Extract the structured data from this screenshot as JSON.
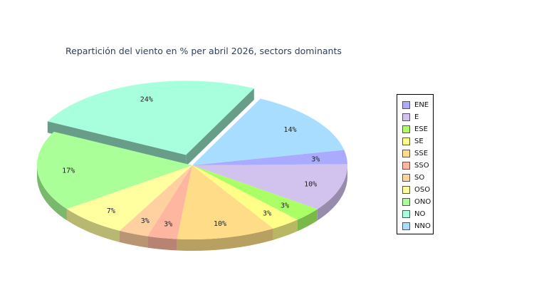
{
  "chart_data": {
    "type": "pie",
    "title": "Repartición del viento en % per abril 2026, sectors dominants",
    "legend_position": "right",
    "slices": [
      {
        "name": "ENE",
        "value": 3,
        "label": "3%",
        "color": "#aaaaff"
      },
      {
        "name": "E",
        "value": 10,
        "label": "10%",
        "color": "#d2c2ee"
      },
      {
        "name": "ESE",
        "value": 3,
        "label": "3%",
        "color": "#aaff66"
      },
      {
        "name": "SE",
        "value": 3,
        "label": "3%",
        "color": "#ffff88"
      },
      {
        "name": "SSE",
        "value": 10,
        "label": "10%",
        "color": "#ffdd88"
      },
      {
        "name": "SSO",
        "value": 3,
        "label": "3%",
        "color": "#ffb6a0"
      },
      {
        "name": "SO",
        "value": 3,
        "label": "3%",
        "color": "#ffd0a0"
      },
      {
        "name": "OSO",
        "value": 7,
        "label": "7%",
        "color": "#ffffa0"
      },
      {
        "name": "ONO",
        "value": 17,
        "label": "17%",
        "color": "#aaff99"
      },
      {
        "name": "NO",
        "value": 24,
        "label": "24%",
        "color": "#a8ffdd",
        "exploded": true
      },
      {
        "name": "NNO",
        "value": 14,
        "label": "14%",
        "color": "#a8ddff"
      }
    ]
  }
}
